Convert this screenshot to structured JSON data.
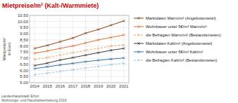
{
  "chart_data": {
    "type": "line",
    "title": "Mietpreise/m² (Kalt-/Warmmiete)",
    "y_label": "Mietpreis/m²\nin Euro",
    "annotations": [
      "Landeshauptstadt Erfurt\nWohnungs- und Haushaltserhebung 2019"
    ],
    "x": [
      2014,
      2015,
      2016,
      2017,
      2018,
      2019,
      2020,
      2021
    ],
    "xlim": [
      2013.6,
      2021.4
    ],
    "xticks": [
      2014,
      2015,
      2016,
      2017,
      2018,
      2019,
      2020,
      2021
    ],
    "ylim": [
      5.0,
      10.5
    ],
    "yticks": [
      {
        "value": 5.0,
        "label": "5.00"
      },
      {
        "value": 5.5,
        "label": "5.50"
      },
      {
        "value": 6.0,
        "label": "6.00"
      },
      {
        "value": 6.5,
        "label": "6.50"
      },
      {
        "value": 7.0,
        "label": "7.00"
      },
      {
        "value": 7.5,
        "label": "7.50"
      },
      {
        "value": 8.0,
        "label": "8.00"
      },
      {
        "value": 8.5,
        "label": "8.50"
      },
      {
        "value": 9.0,
        "label": "9.00"
      },
      {
        "value": 9.5,
        "label": "9.50"
      },
      {
        "value": 10.0,
        "label": "10.00"
      },
      {
        "value": 10.5,
        "label": "10.50"
      }
    ],
    "grid": true,
    "legend": "right",
    "series": [
      {
        "name": "Marktdaten Warm/m² (Angebotsmietel)",
        "color": "#8B4010",
        "marker": "x",
        "line_style": "solid",
        "values": [
          7.8,
          8.05,
          8.35,
          8.65,
          9.05,
          9.35,
          9.7,
          10.05
        ]
      },
      {
        "name": "Wohnbauer unter 5€/m² Warm/m²",
        "color": "#E07030",
        "marker": "x",
        "line_style": "solid",
        "values": [
          7.4,
          7.6,
          7.8,
          8.0,
          8.25,
          8.5,
          8.7,
          8.9
        ]
      },
      {
        "name": "die Befragten Warm/m² (Bestandsmieten)",
        "color": "#F0A870",
        "marker": "x",
        "line_style": "dashed",
        "values": [
          6.9,
          7.05,
          7.25,
          7.45,
          7.65,
          7.8,
          8.0,
          8.1
        ]
      },
      {
        "name": "Marktdaten Kalt/m² (Angebotsmietel)",
        "color": "#383838",
        "marker": "x",
        "line_style": "solid",
        "values": [
          6.4,
          6.6,
          6.85,
          7.05,
          7.25,
          7.45,
          7.65,
          7.8
        ]
      },
      {
        "name": "Wohnbauer unter 5€/m² Kalt/m²",
        "color": "#3070B0",
        "marker": "x",
        "line_style": "solid",
        "values": [
          6.15,
          6.3,
          6.45,
          6.58,
          6.72,
          6.83,
          6.93,
          7.02
        ]
      },
      {
        "name": "die Befragten Kalt/m² (Bestandsmieten)",
        "color": "#90C8E8",
        "marker": "x",
        "line_style": "dashed",
        "values": [
          5.65,
          5.78,
          5.92,
          6.05,
          6.2,
          6.33,
          6.48,
          6.58
        ]
      }
    ]
  }
}
